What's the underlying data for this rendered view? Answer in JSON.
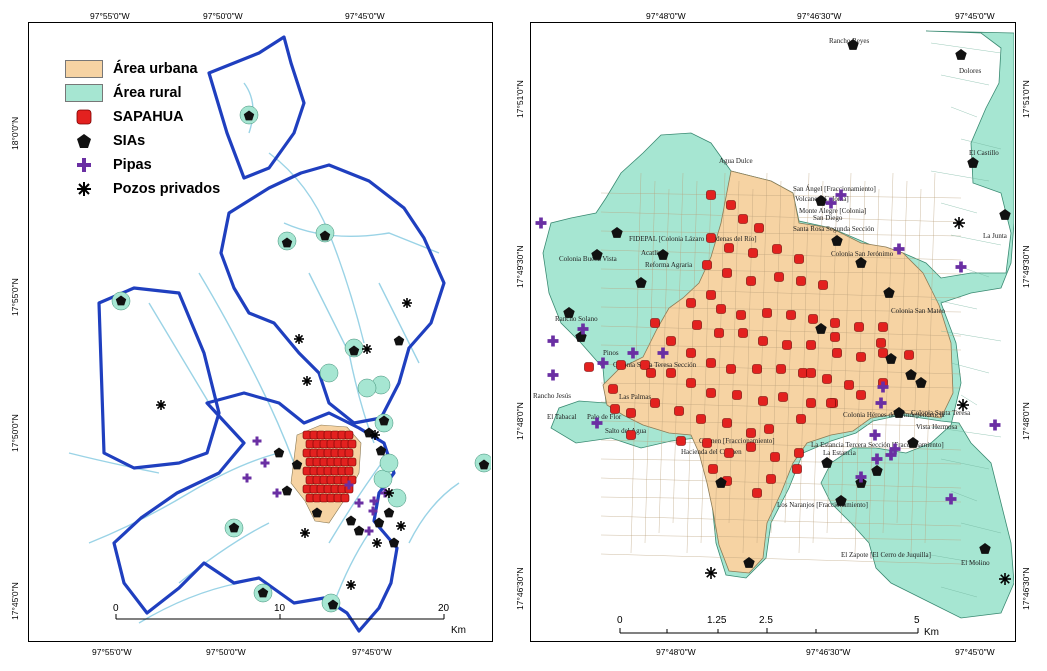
{
  "left_map": {
    "legend": [
      {
        "label": "Área urbana",
        "color": "#f6d3a3",
        "kind": "fill"
      },
      {
        "label": "Área rural",
        "color": "#a6e6d2",
        "kind": "fill"
      },
      {
        "label": "SAPAHUA",
        "color": "#e3211f",
        "kind": "red-square"
      },
      {
        "label": "SIAs",
        "color": "#111111",
        "kind": "black-pentagon"
      },
      {
        "label": "Pipas",
        "color": "#6a2fa3",
        "kind": "purple-cross"
      },
      {
        "label": "Pozos privados",
        "color": "#000000",
        "kind": "asterisk"
      }
    ],
    "top_coords": [
      "97°55'0\"W",
      "97°50'0\"W",
      "97°45'0\"W"
    ],
    "bottom_coords": [
      "97°55'0\"W",
      "97°50'0\"W",
      "97°45'0\"W"
    ],
    "left_coords": [
      "18°0'0\"N",
      "17°55'0\"N",
      "17°50'0\"N",
      "17°45'0\"N"
    ],
    "scale": {
      "ticks": [
        "0",
        "10",
        "20"
      ],
      "unit": "Km"
    }
  },
  "right_map": {
    "top_coords": [
      "97°48'0\"W",
      "97°46'30\"W",
      "97°45'0\"W"
    ],
    "bottom_coords": [
      "97°48'0\"W",
      "97°46'30\"W",
      "97°45'0\"W"
    ],
    "left_coords": [
      "17°51'0\"N",
      "17°49'30\"N",
      "17°48'0\"N",
      "17°46'30\"N"
    ],
    "right_coords": [
      "17°51'0\"N",
      "17°49'30\"N",
      "17°48'0\"N",
      "17°46'30\"N"
    ],
    "scale": {
      "ticks": [
        "0",
        "1.25",
        "2.5",
        "5"
      ],
      "unit": "Km"
    },
    "place_names": [
      "Rancho Reyes",
      "Dolores",
      "Agua Dulce",
      "San Ángel [Fraccionamiento]",
      "Volcanes [Colonia]",
      "Monte Alegre [Colonia]",
      "San Diego",
      "Santa Rosa Segunda Sección",
      "El Castillo",
      "La Junta",
      "FIDEPAL [Colonia Lázaro Cárdenas del Río]",
      "Acatlima",
      "Colonia Buena Vista",
      "Reforma Agraria",
      "Colonia San Jerónimo",
      "Rancho Solano",
      "Colonia San Mateo",
      "Pinos",
      "Colonia Santa Teresa Sección",
      "Rancho Jesús",
      "Las Palmas",
      "El Tabacal",
      "Palo de Flor",
      "Salto del Agua",
      "Carmen [Fraccionamiento]",
      "Hacienda del Carmen",
      "Colonia Santa Teresa",
      "Colonia Héroes de la Independencia",
      "Vista Hermosa",
      "La Estancia Tercera Sección [Fraccionamiento]",
      "La Estancia",
      "Los Naranjos [Fraccionamiento]",
      "El Zapote [El Cerro de Juquilla]",
      "El Molino"
    ]
  }
}
